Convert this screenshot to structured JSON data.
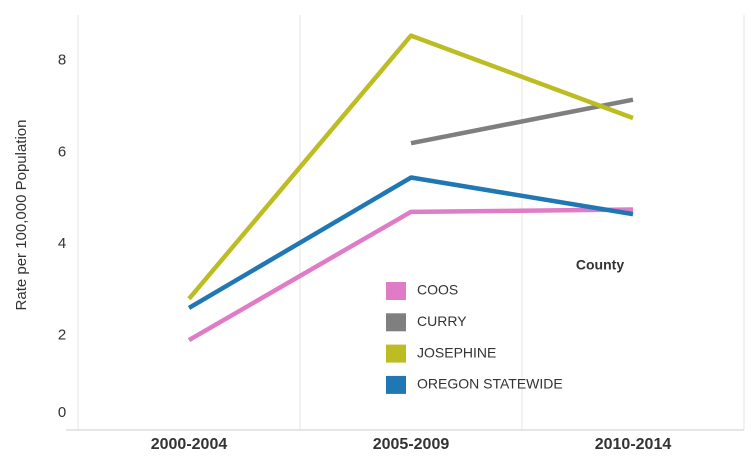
{
  "chart_data": {
    "type": "line",
    "y_label": "Rate per 100,000 Population",
    "categories": [
      "2000-2004",
      "2005-2009",
      "2010-2014"
    ],
    "series": [
      {
        "name": "COOS",
        "color": "#e07bc8",
        "values": [
          1.9,
          4.7,
          4.75
        ]
      },
      {
        "name": "CURRY",
        "color": "#7f7f7f",
        "values": [
          null,
          6.2,
          7.15
        ]
      },
      {
        "name": "JOSEPHINE",
        "color": "#bcbd22",
        "values": [
          2.8,
          8.55,
          6.75
        ]
      },
      {
        "name": "OREGON STATEWIDE",
        "color": "#1f77b4",
        "values": [
          2.6,
          5.45,
          4.65
        ]
      }
    ],
    "legend_title": "County",
    "ylim": [
      0,
      9
    ],
    "yticks": [
      0,
      2,
      4,
      6,
      8
    ]
  }
}
